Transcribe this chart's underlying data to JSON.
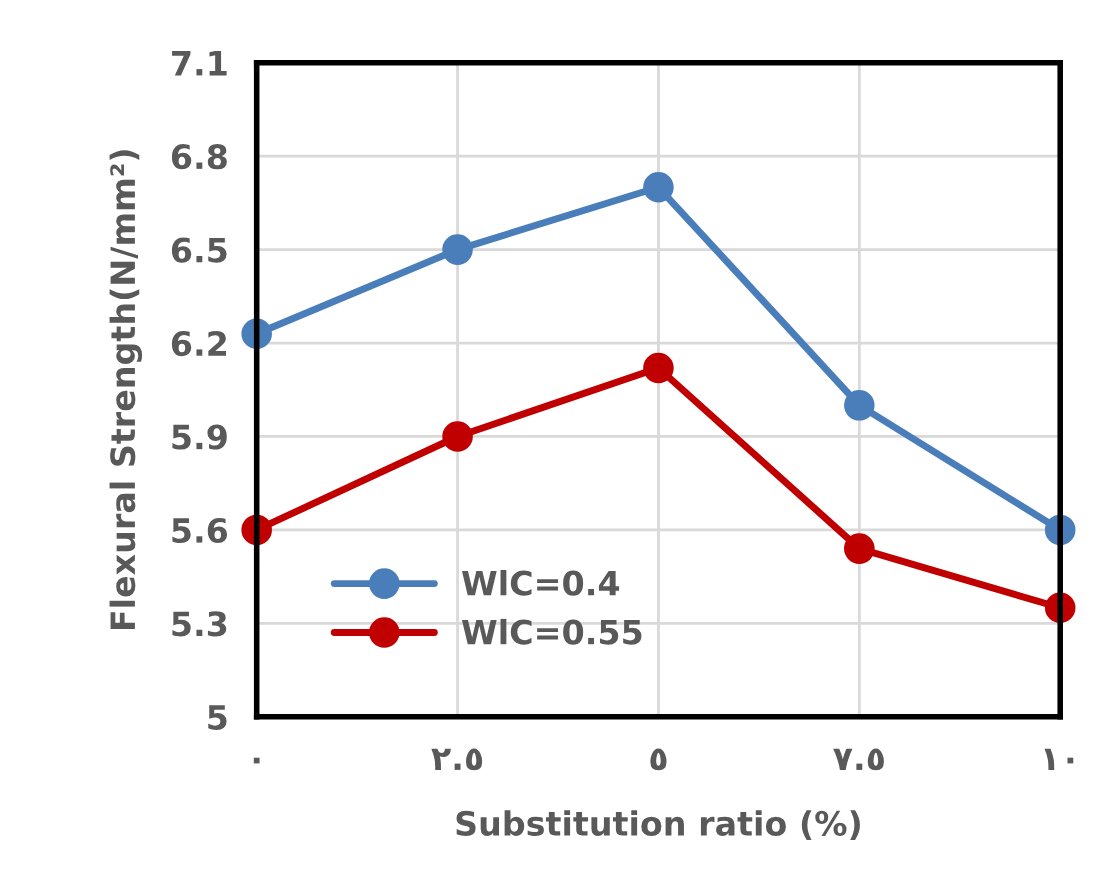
{
  "chart_data": {
    "type": "line",
    "xlabel": "Substitution ratio (%)",
    "ylabel": "Flexural Strength(N/mm²)",
    "categories": [
      "٠",
      "٢.٥",
      "٥",
      "٧.٥",
      "١٠"
    ],
    "series": [
      {
        "name": "WlC=0.4",
        "color": "#4a7ebb",
        "values": [
          6.23,
          6.5,
          6.7,
          6.0,
          5.6
        ]
      },
      {
        "name": "WlC=0.55",
        "color": "#c00000",
        "values": [
          5.6,
          5.9,
          6.12,
          5.54,
          5.35
        ]
      }
    ],
    "ylim": [
      5,
      7.1
    ],
    "yticks": [
      5,
      5.3,
      5.6,
      5.9,
      6.2,
      6.5,
      6.8,
      7.1
    ],
    "grid": true,
    "legend": "bottom left",
    "marker": "circle",
    "line_style": "solid"
  }
}
